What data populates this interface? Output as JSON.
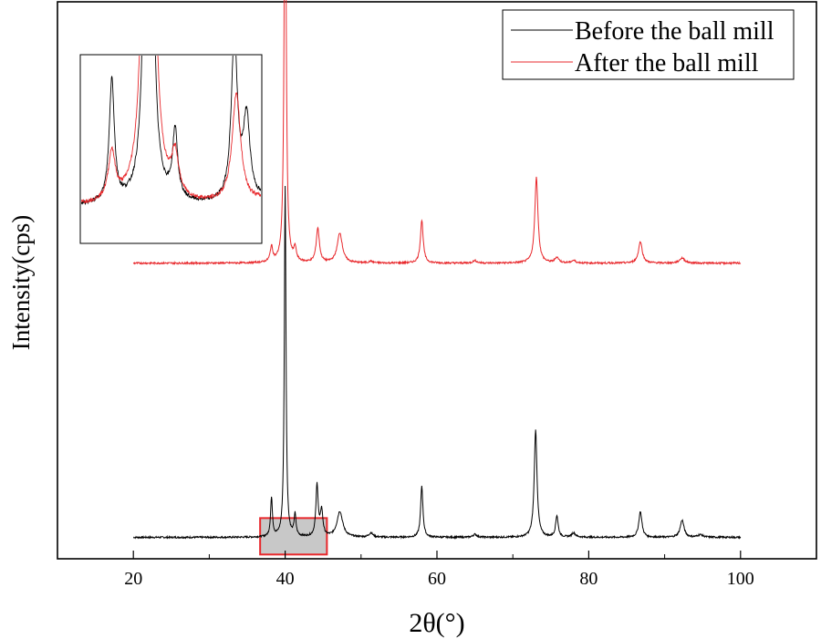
{
  "chart_data": {
    "type": "line",
    "title": "",
    "xlabel": "2θ(°)",
    "ylabel": "Intensity(cps)",
    "xlim": [
      10,
      110
    ],
    "ylim": [
      0,
      1.3
    ],
    "xticks": [
      20,
      40,
      60,
      80,
      100
    ],
    "xtick_labels": [
      "20",
      "40",
      "60",
      "80",
      "100"
    ],
    "grid": false,
    "y_tick_labels_shown": false,
    "legend": {
      "placement": "top-right"
    },
    "series": [
      {
        "name": "Before the ball mill",
        "color": "#000000",
        "baseline": 0.05,
        "x_range": [
          20,
          100
        ],
        "peaks": [
          {
            "x": 38.2,
            "height": 0.09,
            "width": 0.15
          },
          {
            "x": 40.0,
            "height": 0.82,
            "width": 0.13
          },
          {
            "x": 41.3,
            "height": 0.05,
            "width": 0.15
          },
          {
            "x": 44.2,
            "height": 0.12,
            "width": 0.18
          },
          {
            "x": 44.8,
            "height": 0.06,
            "width": 0.2
          },
          {
            "x": 47.2,
            "height": 0.06,
            "width": 0.45
          },
          {
            "x": 51.3,
            "height": 0.01,
            "width": 0.3
          },
          {
            "x": 58.0,
            "height": 0.12,
            "width": 0.18
          },
          {
            "x": 65.0,
            "height": 0.007,
            "width": 0.3
          },
          {
            "x": 73.0,
            "height": 0.25,
            "width": 0.22
          },
          {
            "x": 75.8,
            "height": 0.05,
            "width": 0.2
          },
          {
            "x": 78.0,
            "height": 0.01,
            "width": 0.3
          },
          {
            "x": 86.8,
            "height": 0.06,
            "width": 0.25
          },
          {
            "x": 92.3,
            "height": 0.04,
            "width": 0.3
          },
          {
            "x": 94.7,
            "height": 0.006,
            "width": 0.4
          }
        ]
      },
      {
        "name": "After the ball mill",
        "color": "#e8282c",
        "baseline": 0.69,
        "x_range": [
          20,
          100
        ],
        "peaks": [
          {
            "x": 38.2,
            "height": 0.035,
            "width": 0.2
          },
          {
            "x": 40.0,
            "height": 1.1,
            "width": 0.15
          },
          {
            "x": 41.3,
            "height": 0.03,
            "width": 0.2
          },
          {
            "x": 44.3,
            "height": 0.08,
            "width": 0.25
          },
          {
            "x": 47.2,
            "height": 0.07,
            "width": 0.4
          },
          {
            "x": 51.3,
            "height": 0.004,
            "width": 0.3
          },
          {
            "x": 58.0,
            "height": 0.1,
            "width": 0.22
          },
          {
            "x": 65.0,
            "height": 0.006,
            "width": 0.3
          },
          {
            "x": 73.1,
            "height": 0.2,
            "width": 0.25
          },
          {
            "x": 75.8,
            "height": 0.013,
            "width": 0.3
          },
          {
            "x": 78.0,
            "height": 0.006,
            "width": 0.3
          },
          {
            "x": 86.8,
            "height": 0.05,
            "width": 0.3
          },
          {
            "x": 92.3,
            "height": 0.012,
            "width": 0.4
          }
        ]
      }
    ],
    "highlight_box": {
      "x_range": [
        36.7,
        45.5
      ],
      "fill": "#c8c8c8",
      "stroke": "#e8282c"
    },
    "inset": {
      "x_range": [
        36.7,
        45.5
      ],
      "tick_labels_shown": false
    }
  }
}
